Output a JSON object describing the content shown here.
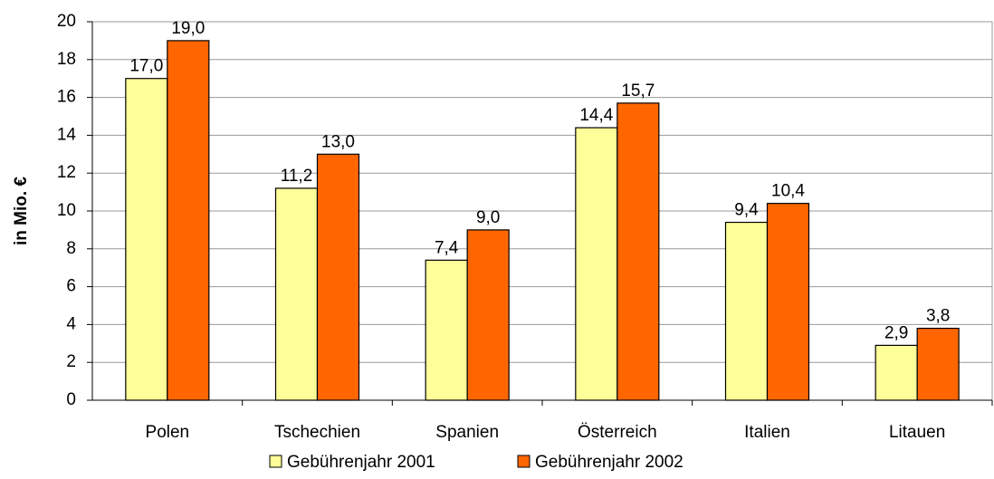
{
  "chart_data": {
    "type": "bar",
    "y_label": "in Mio. €",
    "categories": [
      "Polen",
      "Tschechien",
      "Spanien",
      "Österreich",
      "Italien",
      "Litauen"
    ],
    "series": [
      {
        "name": "Gebührenjahr 2001",
        "color": "#ffff99",
        "values": [
          17.0,
          11.2,
          7.4,
          14.4,
          9.4,
          2.9
        ],
        "value_labels": [
          "17,0",
          "11,2",
          "7,4",
          "14,4",
          "9,4",
          "2,9"
        ]
      },
      {
        "name": "Gebührenjahr 2002",
        "color": "#ff6600",
        "values": [
          19.0,
          13.0,
          9.0,
          15.7,
          10.4,
          3.8
        ],
        "value_labels": [
          "19,0",
          "13,0",
          "9,0",
          "15,7",
          "10,4",
          "3,8"
        ]
      }
    ],
    "ylim": [
      0,
      20
    ],
    "yticks": [
      0,
      2,
      4,
      6,
      8,
      10,
      12,
      14,
      16,
      18,
      20
    ],
    "grid": true,
    "legend": "bottom"
  }
}
